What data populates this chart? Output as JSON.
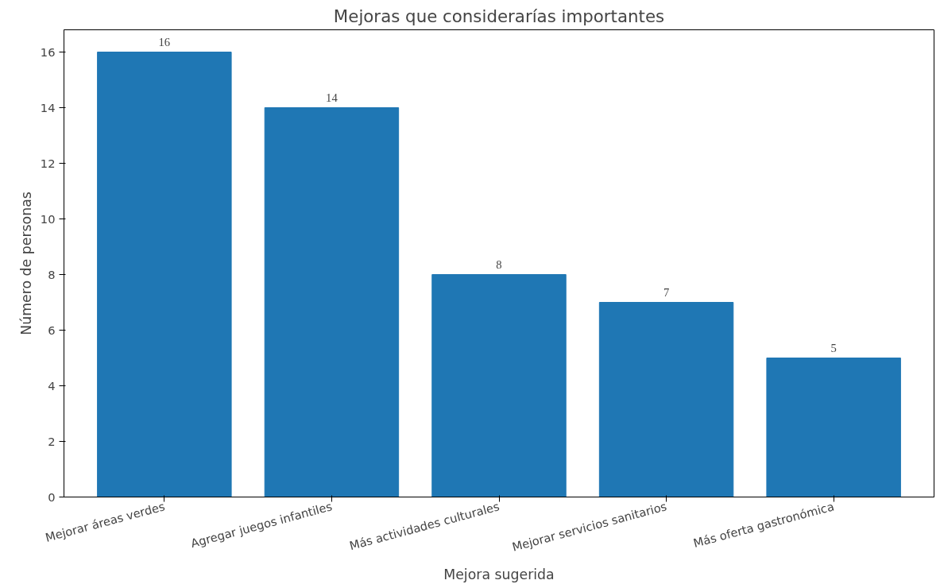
{
  "chart_data": {
    "type": "bar",
    "title": "Mejoras que considerarías importantes",
    "xlabel": "Mejora sugerida",
    "ylabel": "Número de personas",
    "categories": [
      "Mejorar áreas verdes",
      "Agregar juegos infantiles",
      "Más actividades culturales",
      "Mejorar servicios sanitarios",
      "Más oferta gastronómica"
    ],
    "values": [
      16,
      14,
      8,
      7,
      5
    ],
    "color": "#1f77b4",
    "ylim": [
      0,
      16.8
    ],
    "yticks": [
      0,
      2,
      4,
      6,
      8,
      10,
      12,
      14,
      16
    ],
    "data_labels": true
  }
}
